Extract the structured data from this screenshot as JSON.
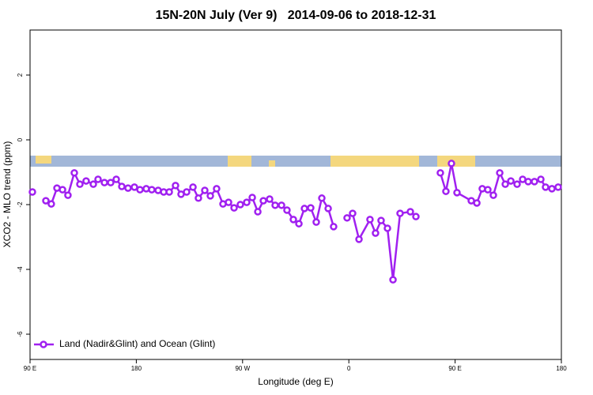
{
  "chart_data": {
    "type": "line",
    "title": "15N-20N July (Ver 9)   2014-09-06 to 2018-12-31",
    "x_label": "Longitude (deg E)",
    "y_label": "XCO2 - MLO trend (ppm)",
    "xlim": [
      90,
      540
    ],
    "ylim": [
      -6.78,
      3.39
    ],
    "xticks": [
      {
        "value": 90,
        "label": "90 E"
      },
      180,
      {
        "value": 270,
        "label": "90 W"
      },
      {
        "value": 360,
        "label": "0"
      },
      {
        "value": 450,
        "label": "90 E"
      },
      {
        "value": 540,
        "label": "180"
      }
    ],
    "yticks": [
      -6,
      -4,
      -2,
      0,
      2
    ],
    "legend": "bottom-left",
    "x": [
      92,
      null,
      103.4,
      108,
      112.8,
      117.5,
      122.1,
      127.5,
      132.2,
      137.5,
      143.6,
      147.6,
      153,
      158.3,
      163,
      167.7,
      173,
      178.4,
      183.1,
      188.4,
      193.1,
      198.5,
      203.2,
      207.9,
      213.2,
      217.9,
      222.6,
      228,
      232.6,
      238,
      242.7,
      248,
      253.4,
      258.1,
      262.8,
      268.1,
      273.5,
      278.2,
      282.9,
      287.6,
      292.9,
      297.6,
      303,
      307.6,
      313,
      317.7,
      322.4,
      327.7,
      332.4,
      337.1,
      342.5,
      347.1,
      null,
      358.5,
      363.2,
      368.6,
      377.9,
      382.6,
      387.3,
      392.7,
      397.4,
      403.4,
      412.1,
      416.8,
      null,
      437.5,
      442.2,
      446.9,
      451.6,
      463.7,
      468.4,
      473,
      477.7,
      482.4,
      487.8,
      492.5,
      497.2,
      502.5,
      507.2,
      511.9,
      517.2,
      522.6,
      526.6,
      532,
      537.3
    ],
    "series": [
      {
        "name": "Land (Nadir&Glint) and Ocean (Glint)",
        "color": "#a020f0",
        "values": [
          -1.61,
          null,
          -1.88,
          -1.98,
          -1.49,
          -1.54,
          -1.71,
          -1.02,
          -1.37,
          -1.27,
          -1.37,
          -1.22,
          -1.32,
          -1.32,
          -1.22,
          -1.44,
          -1.49,
          -1.46,
          -1.54,
          -1.51,
          -1.54,
          -1.56,
          -1.61,
          -1.61,
          -1.41,
          -1.68,
          -1.61,
          -1.46,
          -1.8,
          -1.56,
          -1.73,
          -1.51,
          -1.98,
          -1.93,
          -2.1,
          -2.0,
          -1.93,
          -1.78,
          -2.22,
          -1.88,
          -1.83,
          -2.02,
          -2.02,
          -2.17,
          -2.46,
          -2.59,
          -2.12,
          -2.1,
          -2.54,
          -1.8,
          -2.12,
          -2.68,
          null,
          -2.41,
          -2.27,
          -3.07,
          -2.46,
          -2.88,
          -2.49,
          -2.73,
          -4.32,
          -2.27,
          -2.22,
          -2.37,
          null,
          -1.02,
          -1.59,
          -0.73,
          -1.63,
          -1.88,
          -1.95,
          -1.51,
          -1.54,
          -1.71,
          -1.02,
          -1.37,
          -1.27,
          -1.37,
          -1.22,
          -1.29,
          -1.29,
          -1.22,
          -1.46,
          -1.51,
          -1.46
        ]
      }
    ]
  }
}
